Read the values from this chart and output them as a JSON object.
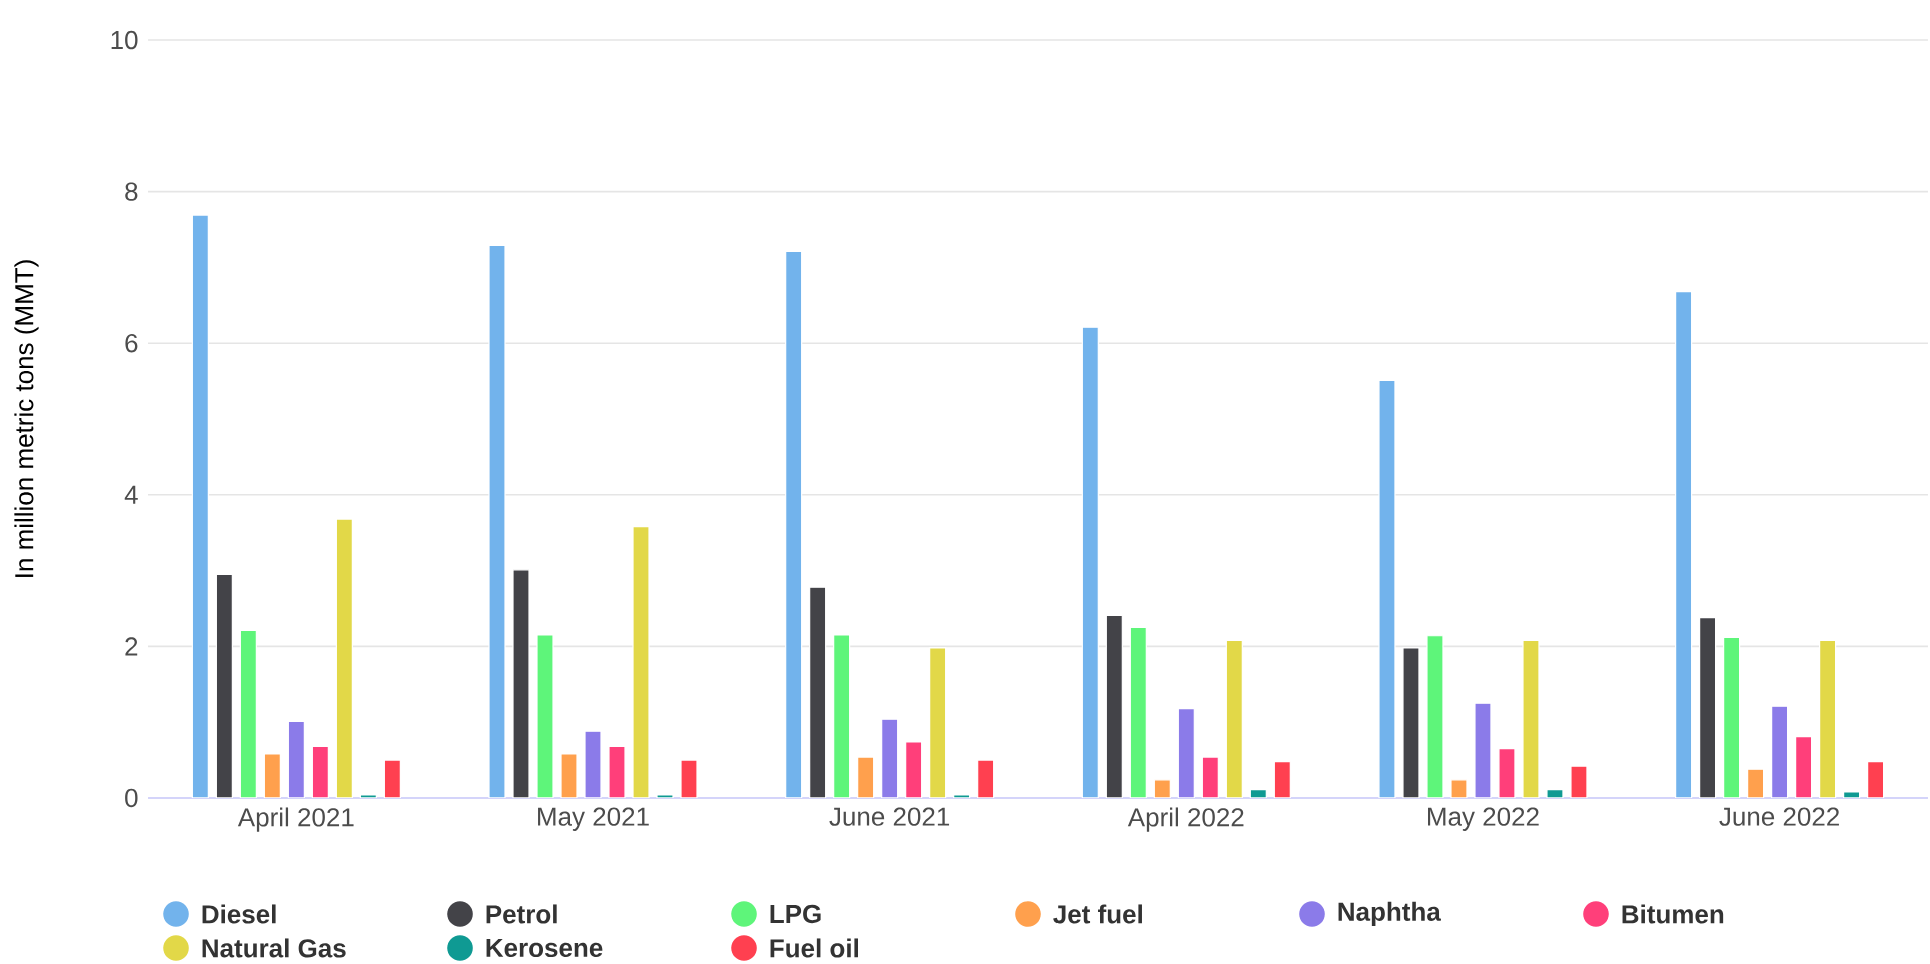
{
  "chart_data": {
    "type": "bar",
    "ylabel": "In million metric tons (MMT)",
    "categories": [
      "April 2021",
      "May 2021",
      "June 2021",
      "April 2022",
      "May 2022",
      "June 2022"
    ],
    "series": [
      {
        "name": "Diesel",
        "color": "#72b3ec",
        "values": [
          7.69,
          7.29,
          7.21,
          6.21,
          5.51,
          6.68
        ]
      },
      {
        "name": "Petrol",
        "color": "#434348",
        "values": [
          2.95,
          3.01,
          2.78,
          2.41,
          1.98,
          2.38
        ]
      },
      {
        "name": "LPG",
        "color": "#5ef57a",
        "values": [
          2.21,
          2.15,
          2.15,
          2.25,
          2.14,
          2.12
        ]
      },
      {
        "name": "Jet fuel",
        "color": "#ffa04d",
        "values": [
          0.58,
          0.58,
          0.54,
          0.24,
          0.24,
          0.38
        ]
      },
      {
        "name": "Naphtha",
        "color": "#8b7be9",
        "values": [
          1.01,
          0.88,
          1.04,
          1.18,
          1.25,
          1.21
        ]
      },
      {
        "name": "Bitumen",
        "color": "#ff3f7a",
        "values": [
          0.68,
          0.68,
          0.74,
          0.54,
          0.65,
          0.81
        ]
      },
      {
        "name": "Natural Gas",
        "color": "#e2d848",
        "values": [
          3.68,
          3.58,
          1.98,
          2.08,
          2.08,
          2.08
        ]
      },
      {
        "name": "Kerosene",
        "color": "#0f9a93",
        "values": [
          0.04,
          0.04,
          0.04,
          0.11,
          0.11,
          0.08
        ]
      },
      {
        "name": "Fuel oil",
        "color": "#ff4050",
        "values": [
          0.5,
          0.5,
          0.5,
          0.48,
          0.42,
          0.48
        ]
      }
    ],
    "ylim": [
      0,
      10
    ],
    "yticks": [
      0,
      2,
      4,
      6,
      8,
      10
    ],
    "grid": "y",
    "legend": "bottom"
  }
}
